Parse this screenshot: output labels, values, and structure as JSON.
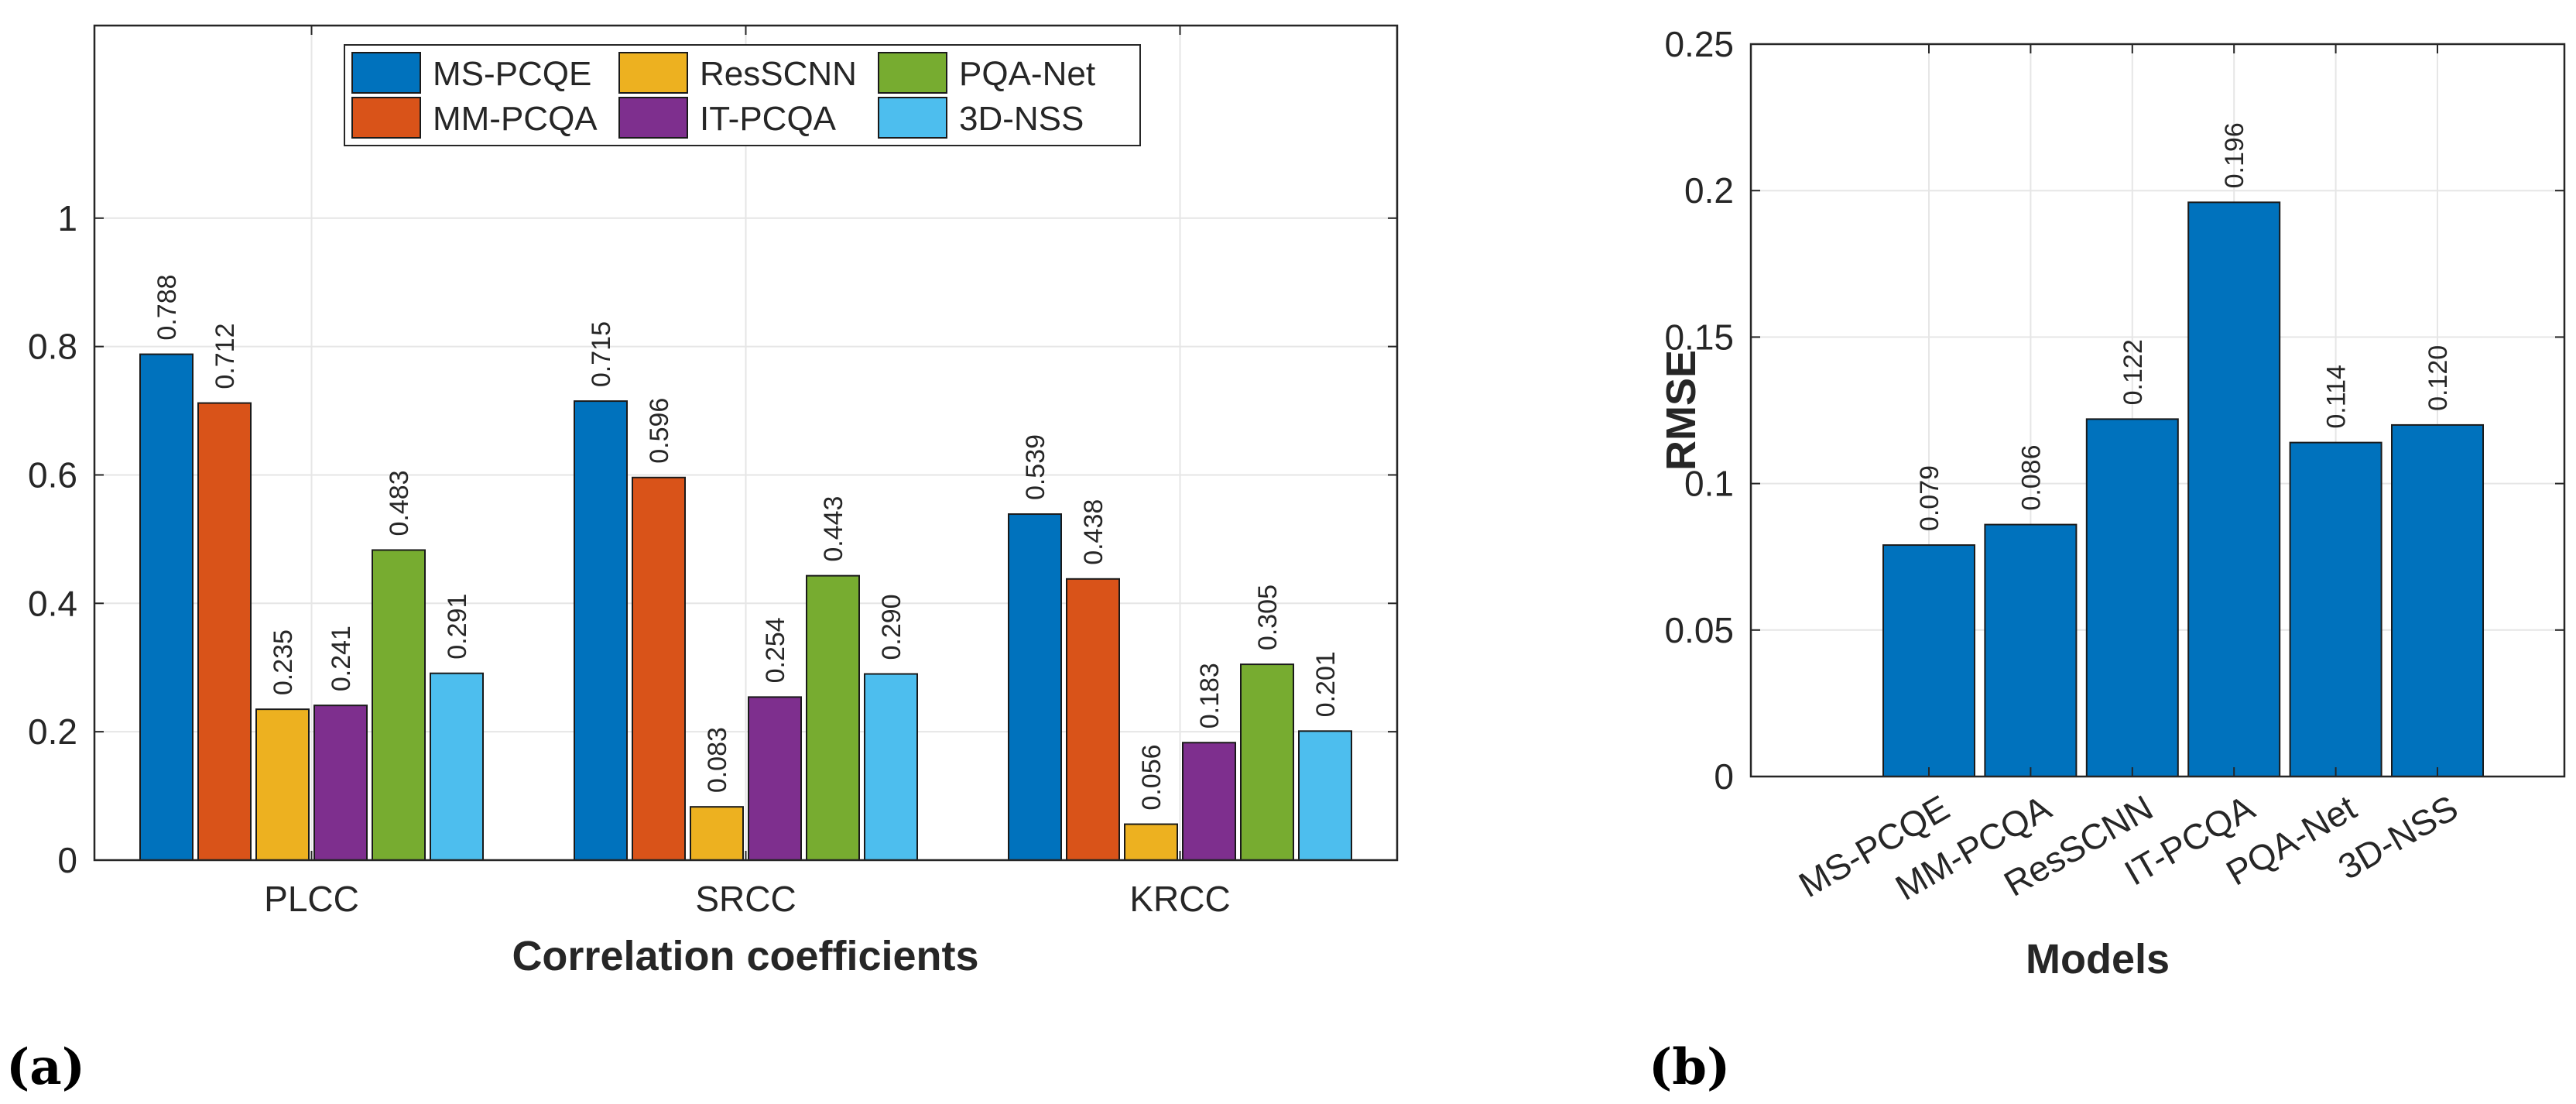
{
  "chart_data": [
    {
      "type": "bar",
      "panel_label": "(a)",
      "categories": [
        "PLCC",
        "SRCC",
        "KRCC"
      ],
      "series": [
        {
          "name": "MS-PCQE",
          "color": "#0072BD",
          "values": [
            0.788,
            0.715,
            0.539
          ]
        },
        {
          "name": "MM-PCQA",
          "color": "#D95319",
          "values": [
            0.712,
            0.596,
            0.438
          ]
        },
        {
          "name": "ResSCNN",
          "color": "#EDB120",
          "values": [
            0.235,
            0.083,
            0.056
          ]
        },
        {
          "name": "IT-PCQA",
          "color": "#7E2F8E",
          "values": [
            0.241,
            0.254,
            0.183
          ]
        },
        {
          "name": "PQA-Net",
          "color": "#77AC30",
          "values": [
            0.483,
            0.443,
            0.305
          ]
        },
        {
          "name": "3D-NSS",
          "color": "#4DBEEE",
          "values": [
            0.291,
            0.29,
            0.201
          ]
        }
      ],
      "data_labels": [
        [
          "0.788",
          "0.715",
          "0.539"
        ],
        [
          "0.712",
          "0.596",
          "0.438"
        ],
        [
          "0.235",
          "0.083",
          "0.056"
        ],
        [
          "0.241",
          "0.254",
          "0.183"
        ],
        [
          "0.483",
          "0.443",
          "0.305"
        ],
        [
          "0.291",
          "0.290",
          "0.201"
        ]
      ],
      "xlabel": "Correlation coefficients",
      "ylabel": "",
      "ylim": [
        0,
        1.3
      ],
      "yticks": [
        0,
        0.2,
        0.4,
        0.6,
        0.8,
        1
      ],
      "ytick_labels": [
        "0",
        "0.2",
        "0.4",
        "0.6",
        "0.8",
        "1"
      ],
      "legend_order": [
        "MS-PCQE",
        "ResSCNN",
        "PQA-Net",
        "MM-PCQA",
        "IT-PCQA",
        "3D-NSS"
      ],
      "legend_location": "top-center",
      "grid": true
    },
    {
      "type": "bar",
      "panel_label": "(b)",
      "categories": [
        "MS-PCQE",
        "MM-PCQA",
        "ResSCNN",
        "IT-PCQA",
        "PQA-Net",
        "3D-NSS"
      ],
      "values": [
        0.079,
        0.086,
        0.122,
        0.196,
        0.114,
        0.12
      ],
      "data_labels": [
        "0.079",
        "0.086",
        "0.122",
        "0.196",
        "0.114",
        "0.120"
      ],
      "color": "#0072BD",
      "xlabel": "Models",
      "ylabel": "RMSE",
      "ylim": [
        0,
        0.25
      ],
      "yticks": [
        0,
        0.05,
        0.1,
        0.15,
        0.2,
        0.25
      ],
      "ytick_labels": [
        "0",
        "0.05",
        "0.1",
        "0.15",
        "0.2",
        "0.25"
      ],
      "grid": true
    }
  ]
}
